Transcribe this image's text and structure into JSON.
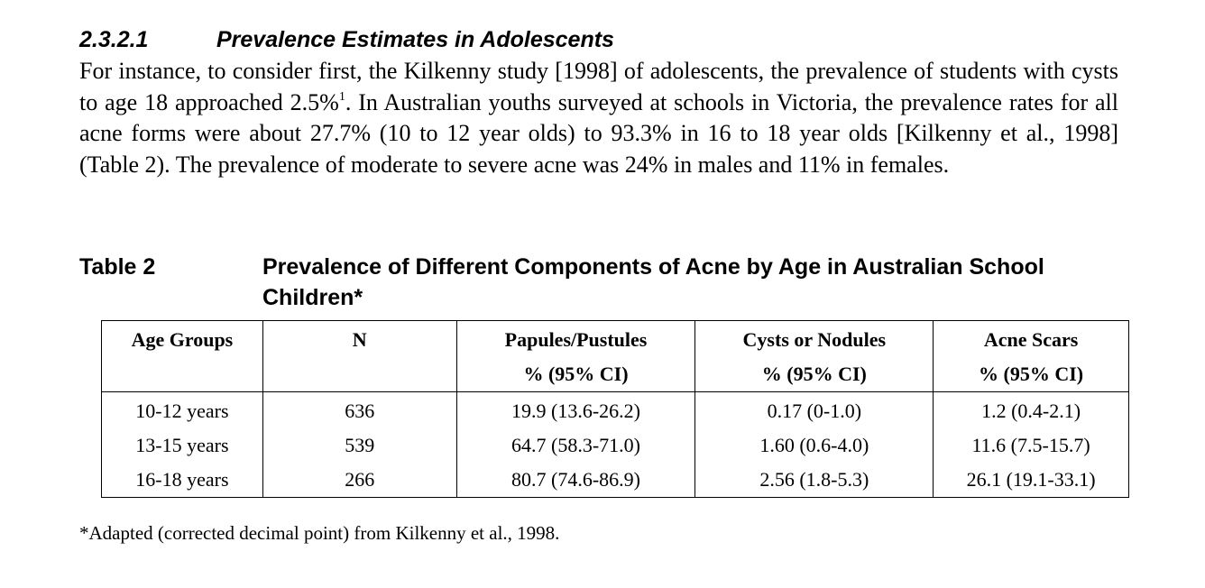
{
  "section": {
    "number": "2.3.2.1",
    "title": "Prevalence Estimates in Adolescents"
  },
  "paragraph": {
    "part1": "For instance, to consider first, the Kilkenny study [1998] of adolescents, the prevalence of students with cysts to age 18 approached 2.5%",
    "footnote_ref": "1",
    "part2": ". In Australian youths surveyed at schools in Victoria, the prevalence rates for all acne forms were about 27.7% (10 to 12 year olds) to 93.3% in 16 to 18 year olds [Kilkenny et al., 1998] (Table 2).  The prevalence of moderate to severe acne was 24% in males and 11% in females."
  },
  "table": {
    "label": "Table 2",
    "title": "Prevalence of Different Components of Acne by Age in Australian School Children*",
    "headers": [
      {
        "line1": "Age Groups",
        "line2": ""
      },
      {
        "line1": "N",
        "line2": ""
      },
      {
        "line1": "Papules/Pustules",
        "line2": "% (95% CI)"
      },
      {
        "line1": "Cysts or Nodules",
        "line2": "% (95% CI)"
      },
      {
        "line1": "Acne Scars",
        "line2": "% (95% CI)"
      }
    ],
    "rows": [
      [
        "10-12 years",
        "636",
        "19.9 (13.6-26.2)",
        "0.17 (0-1.0)",
        "1.2 (0.4-2.1)"
      ],
      [
        "13-15 years",
        "539",
        "64.7 (58.3-71.0)",
        "1.60 (0.6-4.0)",
        "11.6 (7.5-15.7)"
      ],
      [
        "16-18 years",
        "266",
        "80.7 (74.6-86.9)",
        "2.56 (1.8-5.3)",
        "26.1 (19.1-33.1)"
      ]
    ]
  },
  "footnote": "*Adapted (corrected decimal point) from Kilkenny et al., 1998."
}
